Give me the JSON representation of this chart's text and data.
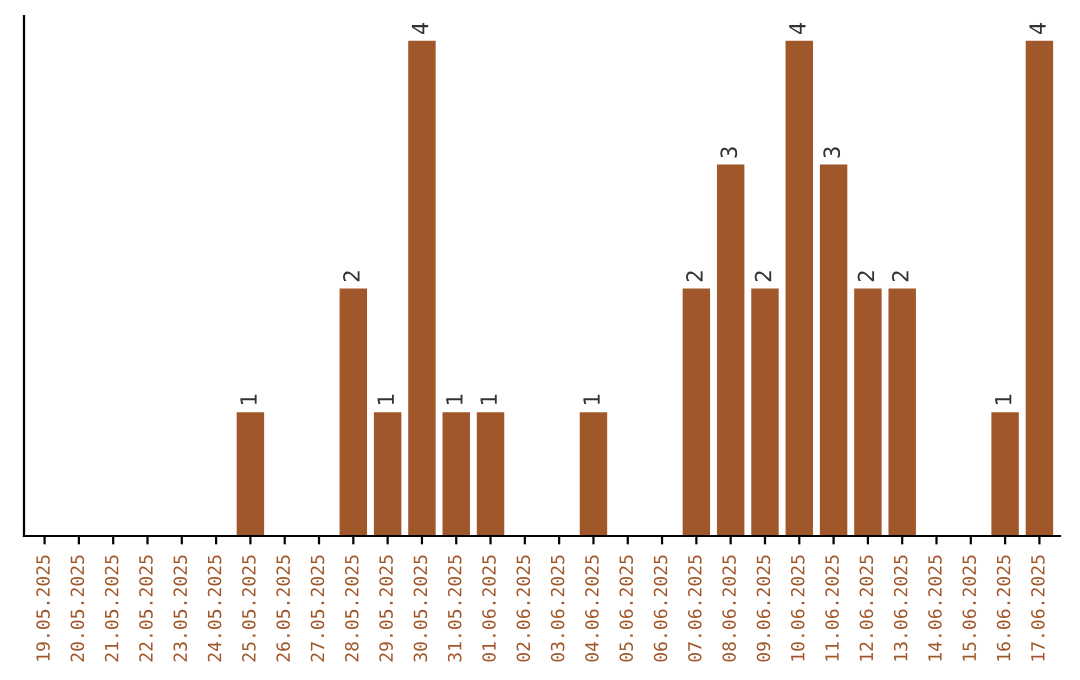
{
  "chart_data": {
    "type": "bar",
    "categories": [
      "19.05.2025",
      "20.05.2025",
      "21.05.2025",
      "22.05.2025",
      "23.05.2025",
      "24.05.2025",
      "25.05.2025",
      "26.05.2025",
      "27.05.2025",
      "28.05.2025",
      "29.05.2025",
      "30.05.2025",
      "31.05.2025",
      "01.06.2025",
      "02.06.2025",
      "03.06.2025",
      "04.06.2025",
      "05.06.2025",
      "06.06.2025",
      "07.06.2025",
      "08.06.2025",
      "09.06.2025",
      "10.06.2025",
      "11.06.2025",
      "12.06.2025",
      "13.06.2025",
      "14.06.2025",
      "15.06.2025",
      "16.06.2025",
      "17.06.2025"
    ],
    "values": [
      0,
      0,
      0,
      0,
      0,
      0,
      1,
      0,
      0,
      2,
      1,
      4,
      1,
      1,
      0,
      0,
      1,
      0,
      0,
      2,
      3,
      2,
      4,
      3,
      2,
      2,
      0,
      0,
      1,
      4
    ],
    "value_labels": [
      null,
      null,
      null,
      null,
      null,
      null,
      "1",
      null,
      null,
      "2",
      "1",
      "4",
      "1",
      "1",
      null,
      null,
      "1",
      null,
      null,
      "2",
      "3",
      "2",
      "4",
      "3",
      "2",
      "2",
      null,
      null,
      "1",
      "4"
    ],
    "color": "#a0572a",
    "ylim": [
      0,
      4.2
    ],
    "tick_labels": "x",
    "grid": false,
    "legend": false
  }
}
